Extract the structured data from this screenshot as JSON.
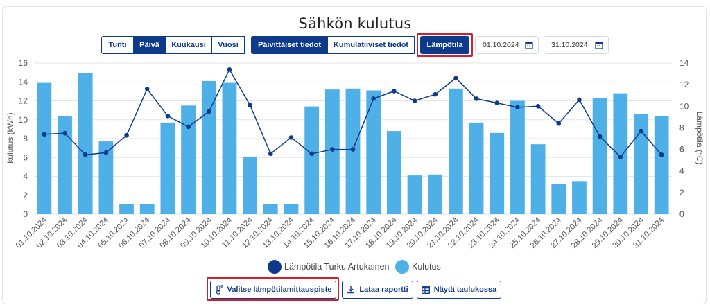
{
  "title": "Sähkön kulutus",
  "period_tabs": [
    "Tunti",
    "Päivä",
    "Kuukausi",
    "Vuosi"
  ],
  "active_period": "Päivä",
  "data_tabs": [
    "Päivittäiset tiedot",
    "Kumulatiiviset tiedot"
  ],
  "active_data_tab": "Päivittäiset tiedot",
  "temperature_button": "Lämpötila",
  "date_start": "01.10.2024",
  "date_end": "31.10.2024",
  "bottom_buttons": {
    "select_station": "Valitse lämpötilamittauspiste",
    "download": "Lataa raportti",
    "table": "Näytä taulukossa"
  },
  "colors": {
    "bar": "#4fb0e8",
    "line": "#0d3a8a",
    "accent": "#0d3a8a",
    "highlight": "#d3202f"
  },
  "icons": {
    "thermometer": "thermometer-icon",
    "download": "download-icon",
    "table": "table-icon",
    "calendar": "calendar-icon"
  },
  "chart_data": {
    "type": "bar",
    "categories": [
      "01.10.2024",
      "02.10.2024",
      "03.10.2024",
      "04.10.2024",
      "05.10.2024",
      "06.10.2024",
      "07.10.2024",
      "08.10.2024",
      "09.10.2024",
      "10.10.2024",
      "11.10.2024",
      "12.10.2024",
      "13.10.2024",
      "14.10.2024",
      "15.10.2024",
      "16.10.2024",
      "17.10.2024",
      "18.10.2024",
      "19.10.2024",
      "20.10.2024",
      "21.10.2024",
      "22.10.2024",
      "23.10.2024",
      "24.10.2024",
      "25.10.2024",
      "26.10.2024",
      "27.10.2024",
      "28.10.2024",
      "29.10.2024",
      "30.10.2024",
      "31.10.2024"
    ],
    "series": [
      {
        "name": "Kulutus",
        "type": "bar",
        "axis": "left",
        "values": [
          13.9,
          10.4,
          14.9,
          7.7,
          1.1,
          1.1,
          9.7,
          11.5,
          14.1,
          13.9,
          6.1,
          1.1,
          1.1,
          11.4,
          13.2,
          13.3,
          13.1,
          8.8,
          4.1,
          4.2,
          13.3,
          9.7,
          8.6,
          12.0,
          7.4,
          3.2,
          3.5,
          12.3,
          12.8,
          10.6,
          10.4
        ]
      },
      {
        "name": "Lämpötila Turku Artukainen",
        "type": "line",
        "axis": "right",
        "values": [
          7.4,
          7.5,
          5.5,
          5.7,
          7.3,
          11.6,
          9.1,
          8.1,
          9.5,
          13.4,
          10.1,
          5.6,
          7.1,
          5.6,
          6.0,
          6.0,
          10.7,
          11.4,
          10.5,
          11.1,
          12.6,
          10.7,
          10.3,
          9.9,
          10.0,
          8.4,
          10.6,
          7.2,
          5.3,
          7.7,
          5.5
        ]
      }
    ],
    "ylabel": "kulutus (kWh)",
    "ylabel_right": "Lämpötila (°C)",
    "ylim": [
      0,
      16
    ],
    "ylim_right": [
      0,
      14
    ],
    "yticks": [
      "0",
      "2",
      "4",
      "6",
      "8",
      "10",
      "12",
      "14",
      "16"
    ],
    "yticks_right": [
      "0",
      "2",
      "4",
      "6",
      "8",
      "10",
      "12",
      "14"
    ],
    "grid": true,
    "legend_position": "bottom"
  }
}
